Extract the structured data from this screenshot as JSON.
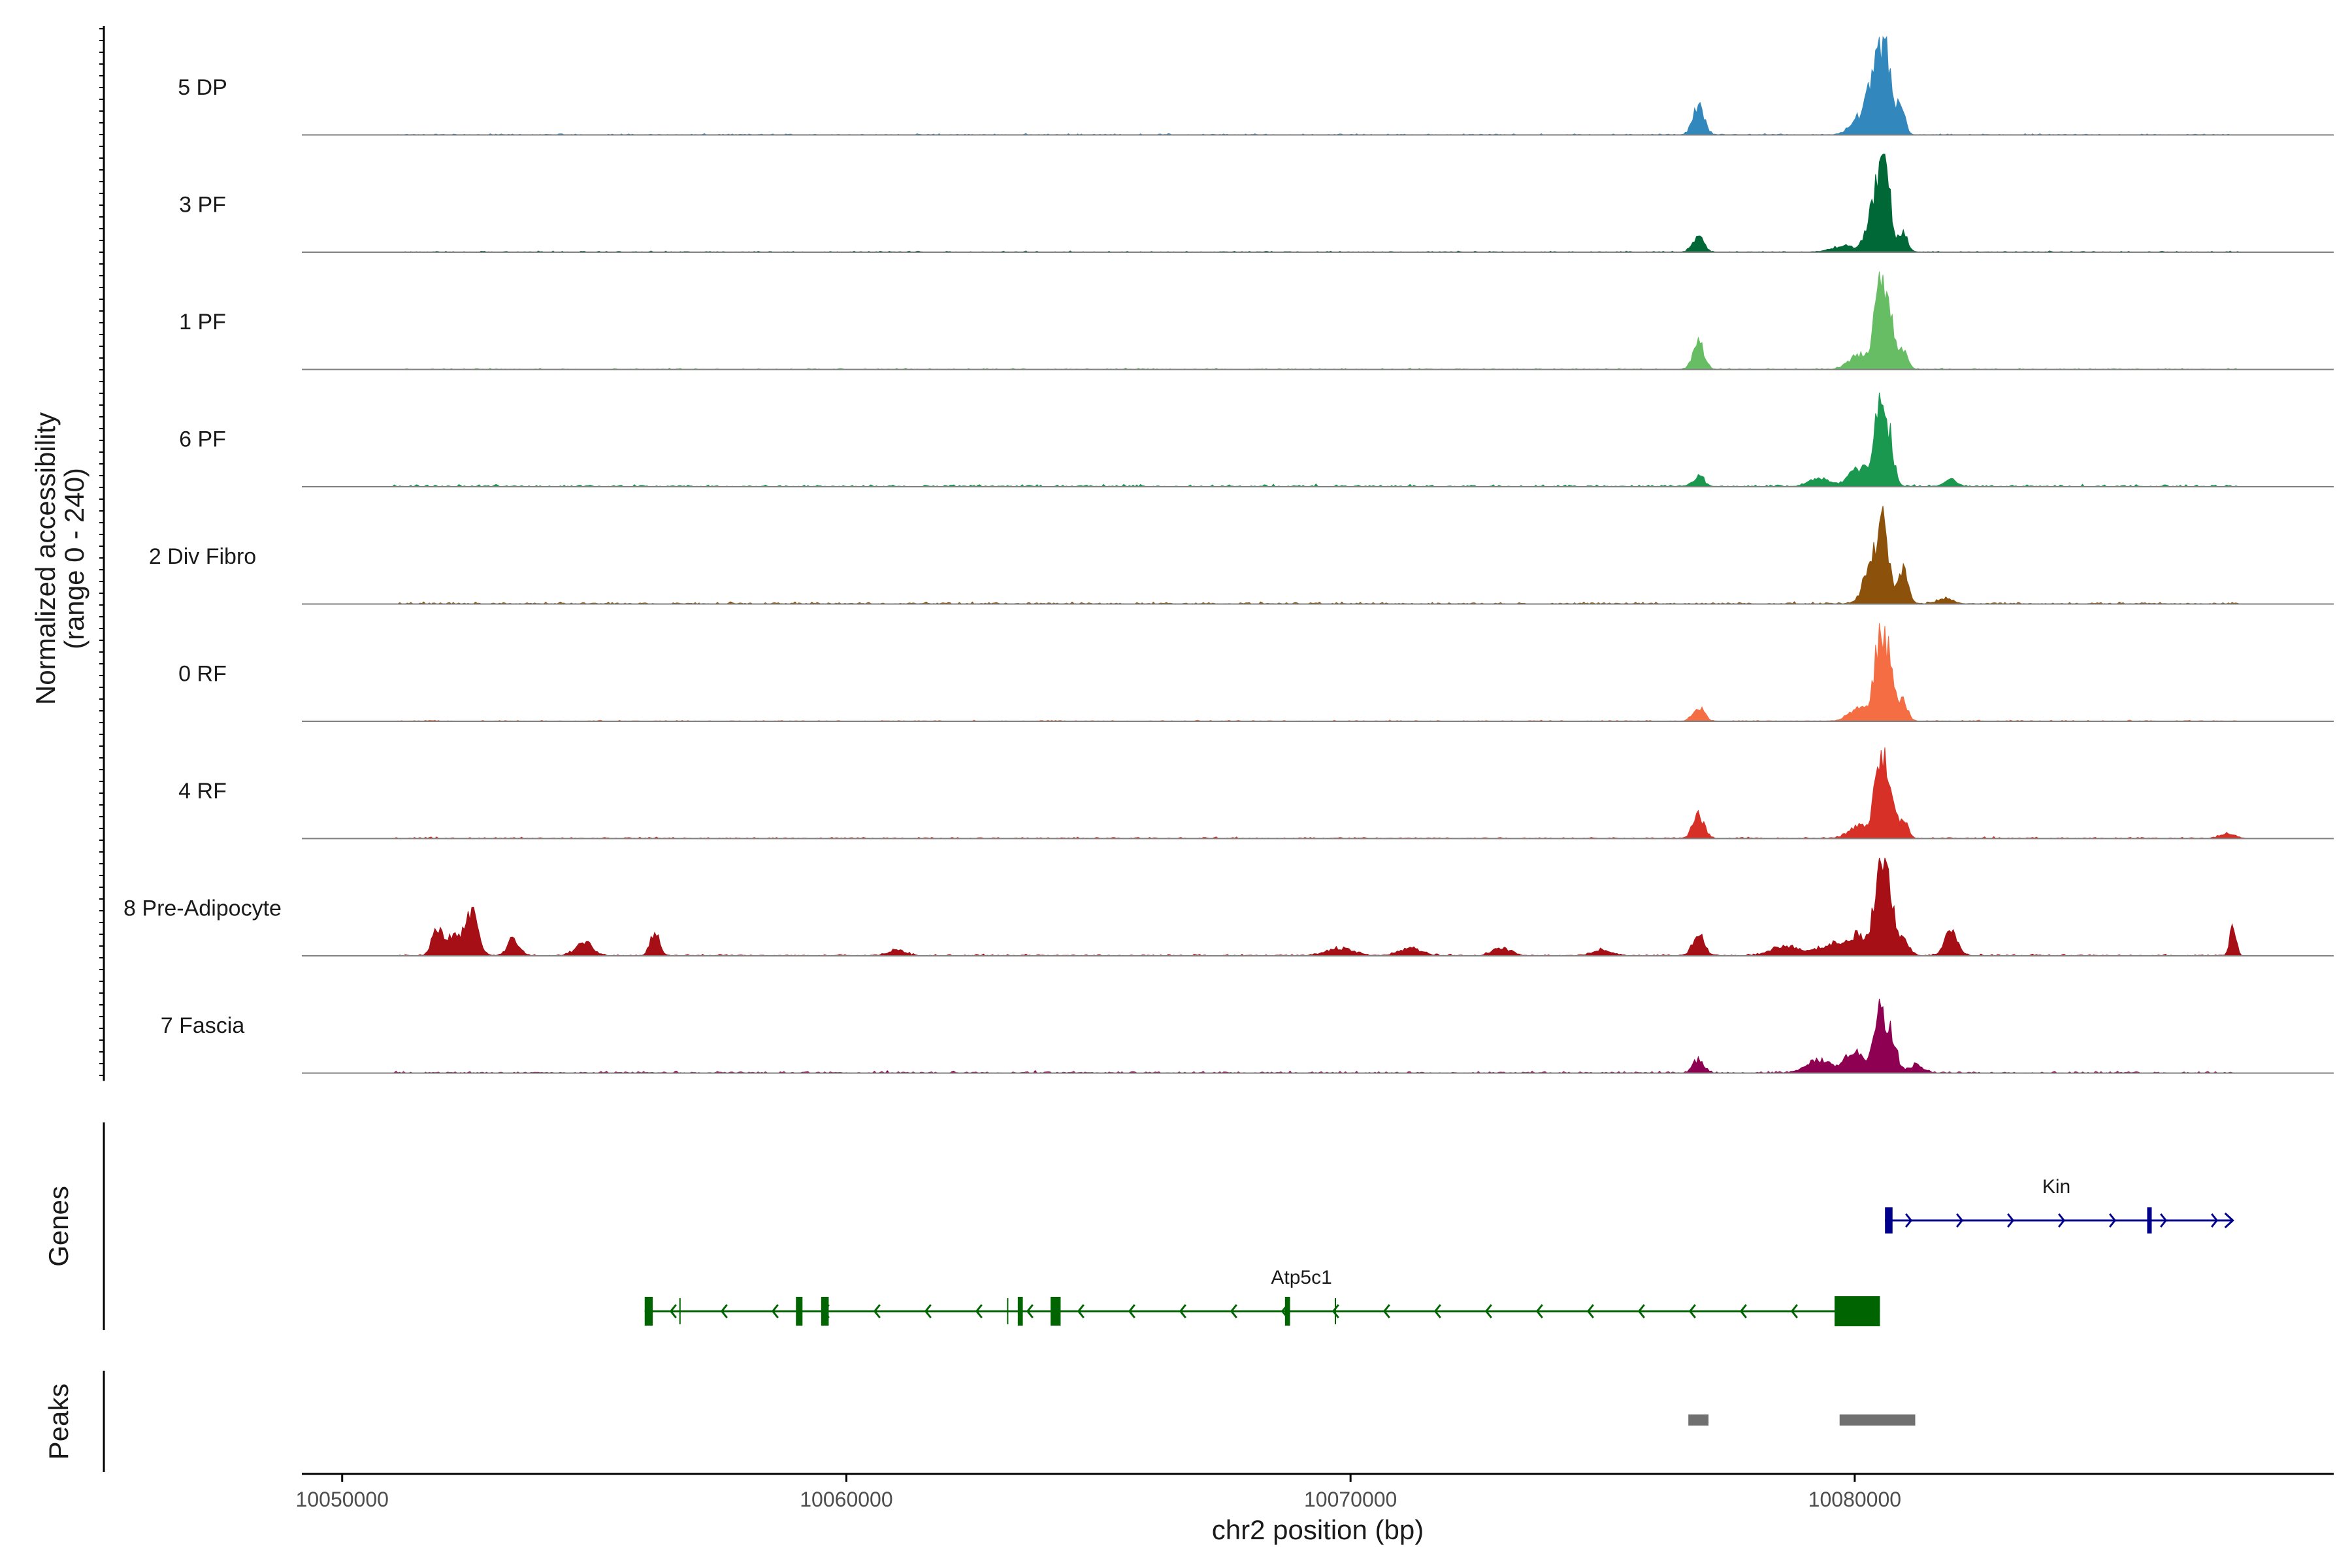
{
  "chart_data": {
    "type": "area",
    "title": "",
    "ylabel_line1": "Normalized accessibility",
    "ylabel_line2": "(range 0 - 240)",
    "ylim": [
      0,
      240
    ],
    "xlabel": "chr2 position (bp)",
    "xlim": [
      10049200,
      10089500
    ],
    "xticks": [
      10050000,
      10060000,
      10070000,
      10080000
    ],
    "xtick_labels": [
      "10050000",
      "10060000",
      "10070000",
      "10080000"
    ],
    "tracks": [
      {
        "name": "5 DP",
        "color": "#3288bd",
        "baseline": 3,
        "extra": [],
        "peaks": [
          [
            10076900,
            70,
            110
          ],
          [
            10080300,
            60,
            110
          ],
          [
            10080500,
            175,
            110
          ],
          [
            10080650,
            125,
            80
          ],
          [
            10080900,
            90,
            80
          ],
          [
            10080100,
            40,
            180
          ]
        ]
      },
      {
        "name": "3 PF",
        "color": "#006837",
        "baseline": 3,
        "extra": [],
        "peaks": [
          [
            10076900,
            35,
            110
          ],
          [
            10080300,
            55,
            110
          ],
          [
            10080500,
            180,
            110
          ],
          [
            10080650,
            120,
            80
          ],
          [
            10080950,
            50,
            90
          ],
          [
            10079800,
            15,
            250
          ]
        ]
      },
      {
        "name": "1 PF",
        "color": "#66bd63",
        "baseline": 3,
        "extra": [],
        "peaks": [
          [
            10076900,
            65,
            110
          ],
          [
            10080100,
            35,
            200
          ],
          [
            10080500,
            195,
            110
          ],
          [
            10080700,
            110,
            80
          ],
          [
            10080950,
            55,
            90
          ]
        ]
      },
      {
        "name": "6 PF",
        "color": "#1a9850",
        "baseline": 6,
        "extra": [],
        "peaks": [
          [
            10076900,
            25,
            110
          ],
          [
            10079300,
            20,
            200
          ],
          [
            10080100,
            45,
            200
          ],
          [
            10080500,
            185,
            110
          ],
          [
            10080700,
            90,
            90
          ],
          [
            10081900,
            18,
            120
          ]
        ]
      },
      {
        "name": "2 Div Fibro",
        "color": "#8c510a",
        "baseline": 5,
        "extra": [],
        "peaks": [
          [
            10080300,
            70,
            150
          ],
          [
            10080550,
            190,
            120
          ],
          [
            10080950,
            80,
            100
          ],
          [
            10081800,
            12,
            150
          ]
        ]
      },
      {
        "name": "0 RF",
        "color": "#f46d43",
        "baseline": 3,
        "extra": [],
        "peaks": [
          [
            10076900,
            35,
            110
          ],
          [
            10080100,
            30,
            200
          ],
          [
            10080500,
            200,
            110
          ],
          [
            10080700,
            115,
            80
          ],
          [
            10080950,
            55,
            90
          ]
        ]
      },
      {
        "name": "4 RF",
        "color": "#d73027",
        "baseline": 4,
        "extra": [],
        "peaks": [
          [
            10076900,
            55,
            110
          ],
          [
            10080100,
            30,
            200
          ],
          [
            10080500,
            195,
            110
          ],
          [
            10080700,
            110,
            80
          ],
          [
            10080950,
            55,
            90
          ],
          [
            10087400,
            12,
            150
          ]
        ]
      },
      {
        "name": "8 Pre-Adipocyte",
        "color": "#a50f15",
        "baseline": 4,
        "extra": [
          [
            10051900,
            70,
            110
          ],
          [
            10052200,
            45,
            100
          ],
          [
            10052550,
            110,
            130
          ],
          [
            10053400,
            40,
            120
          ],
          [
            10054800,
            30,
            170
          ],
          [
            10056200,
            60,
            90
          ],
          [
            10061000,
            15,
            160
          ],
          [
            10069800,
            18,
            260
          ],
          [
            10071200,
            18,
            220
          ],
          [
            10073000,
            18,
            180
          ],
          [
            10075000,
            15,
            180
          ],
          [
            10078600,
            22,
            260
          ],
          [
            10079600,
            28,
            330
          ],
          [
            10080950,
            45,
            120
          ],
          [
            10081900,
            70,
            120
          ],
          [
            10087500,
            80,
            60
          ]
        ],
        "peaks": [
          [
            10076900,
            55,
            110
          ],
          [
            10080100,
            40,
            200
          ],
          [
            10080500,
            220,
            110
          ],
          [
            10080700,
            120,
            80
          ]
        ]
      },
      {
        "name": "7 Fascia",
        "color": "#8e0152",
        "baseline": 5,
        "extra": [],
        "peaks": [
          [
            10076900,
            30,
            110
          ],
          [
            10079300,
            30,
            250
          ],
          [
            10080000,
            55,
            180
          ],
          [
            10080500,
            150,
            110
          ],
          [
            10080750,
            85,
            90
          ],
          [
            10081200,
            18,
            150
          ]
        ]
      }
    ],
    "genes": [
      {
        "name": "Kin",
        "strand": "+",
        "color": "#00008b",
        "start": 10080600,
        "end": 10087500,
        "exons": [
          [
            10080600,
            10080750
          ],
          [
            10085800,
            10085880
          ]
        ]
      },
      {
        "name": "Atp5c1",
        "strand": "-",
        "color": "#006400",
        "start": 10056000,
        "end": 10080500,
        "exons": [
          [
            10056000,
            10056160
          ],
          [
            10059000,
            10059130
          ],
          [
            10059500,
            10059650
          ],
          [
            10063400,
            10063500
          ],
          [
            10064050,
            10064250
          ],
          [
            10068700,
            10068800
          ],
          [
            10079600,
            10080500
          ]
        ],
        "intron_ticks": [
          10056700,
          10063200,
          10069700
        ]
      }
    ],
    "peaks_track_label": "Peaks",
    "genes_track_label": "Genes",
    "peaks_regions": [
      [
        10076700,
        10077100
      ],
      [
        10079700,
        10081200
      ]
    ],
    "colors": {
      "axis": "#000000",
      "baseline": "#808080",
      "peak_region": "#707070"
    }
  }
}
